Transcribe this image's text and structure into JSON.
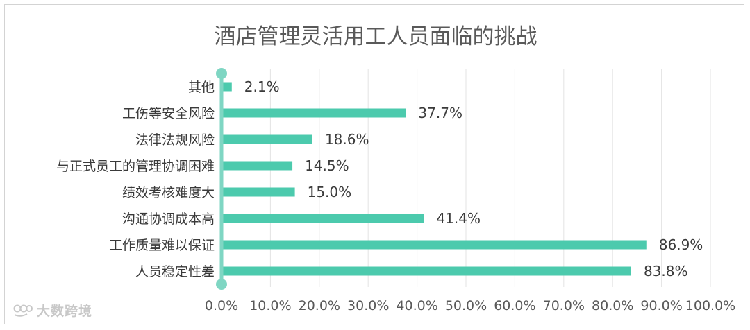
{
  "chart_data": {
    "type": "bar",
    "orientation": "horizontal",
    "title": "酒店管理灵活用工人员面临的挑战",
    "categories": [
      "其他",
      "工伤等安全风险",
      "法律法规风险",
      "与正式员工的管理协调困难",
      "绩效考核难度大",
      "沟通协调成本高",
      "工作质量难以保证",
      "人员稳定性差"
    ],
    "values": [
      2.1,
      37.7,
      18.6,
      14.5,
      15.0,
      41.4,
      86.9,
      83.8
    ],
    "value_labels": [
      "2.1%",
      "37.7%",
      "18.6%",
      "14.5%",
      "15.0%",
      "41.4%",
      "86.9%",
      "83.8%"
    ],
    "x_ticks": [
      "0.0%",
      "10.0%",
      "20.0%",
      "30.0%",
      "40.0%",
      "50.0%",
      "60.0%",
      "70.0%",
      "80.0%",
      "90.0%",
      "100.0%"
    ],
    "xlim": [
      0,
      100
    ],
    "grid": true,
    "bar_color": "#4ccaad",
    "axis_color": "#7fd6c3"
  },
  "watermark": {
    "text": "大数跨境"
  }
}
